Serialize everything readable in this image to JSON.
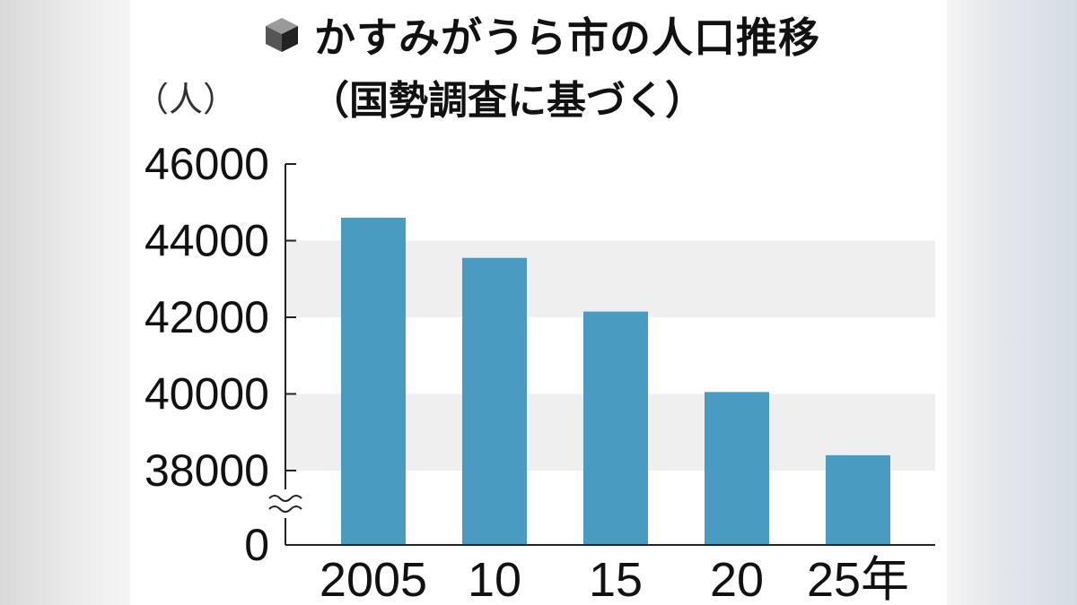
{
  "title": "かすみがうら市の人口推移",
  "subtitle": "（国勢調査に基づく）",
  "unit_label": "（人）",
  "title_icon": "cube-icon",
  "colors": {
    "bar": "#4a9bc2",
    "band": "#efefef",
    "axis": "#222222"
  },
  "chart_data": {
    "type": "bar",
    "title": "かすみがうら市の人口推移",
    "subtitle": "（国勢調査に基づく）",
    "ylabel": "（人）",
    "xlabel": "",
    "categories": [
      "2005",
      "10",
      "15",
      "20",
      "25年"
    ],
    "values": [
      44600,
      43550,
      42150,
      40050,
      38400
    ],
    "ylim": [
      38000,
      46000
    ],
    "y_axis_break": true,
    "y_baseline_label": "0",
    "y_ticks": [
      "46000",
      "44000",
      "42000",
      "40000",
      "38000"
    ],
    "grid": false,
    "legend": "none"
  }
}
